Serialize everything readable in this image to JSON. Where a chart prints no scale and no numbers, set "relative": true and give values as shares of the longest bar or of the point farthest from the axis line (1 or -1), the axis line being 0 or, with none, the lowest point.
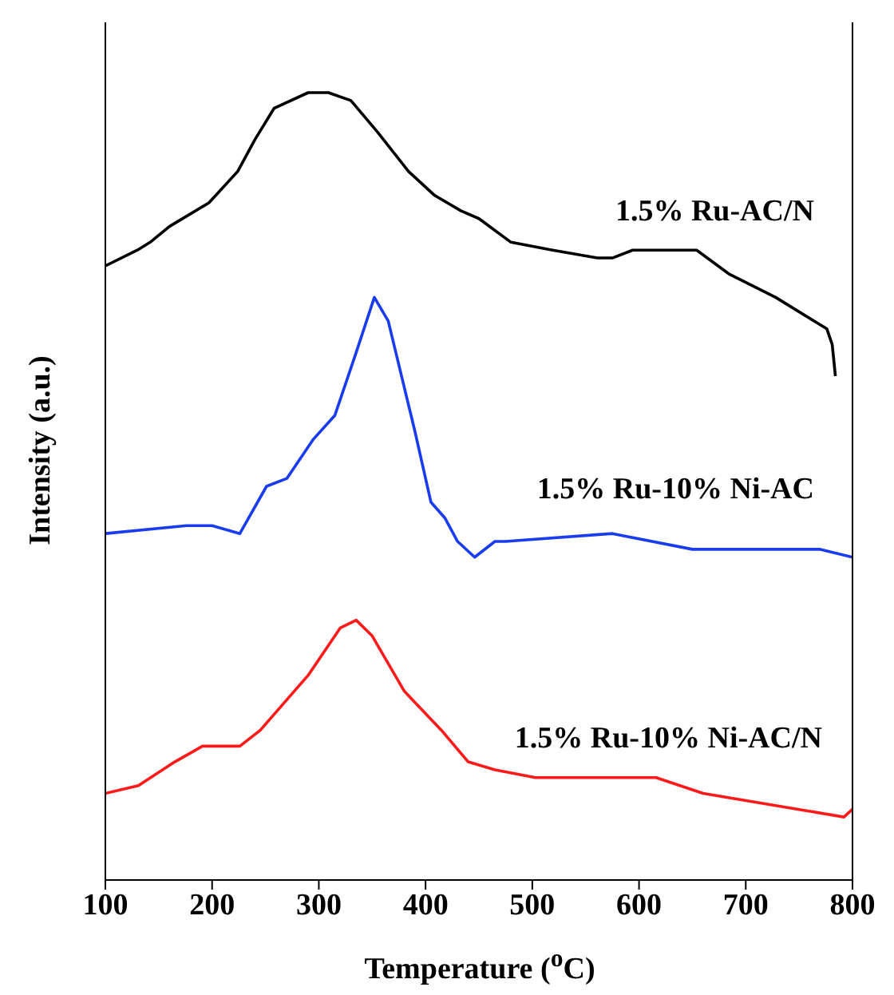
{
  "chart_data": {
    "type": "line",
    "xlabel": "Temperature ($^{o}$C)",
    "ylabel": "Intensity (a.u.)",
    "relative": true,
    "xlim": [
      100,
      800
    ],
    "xticks": [
      100,
      200,
      300,
      400,
      500,
      600,
      700,
      800
    ],
    "legend": false,
    "marker": "none",
    "line_style": "solid",
    "series": [
      {
        "name": "1.5% Ru-AC/N",
        "color": "#000000",
        "x": [
          100,
          130,
          142,
          160,
          197,
          224,
          240,
          258,
          290,
          309,
          330,
          355,
          384,
          408,
          433,
          450,
          480,
          519,
          561,
          575,
          594,
          654,
          684,
          728,
          776,
          781,
          784
        ],
        "values": [
          0.78,
          0.8,
          0.81,
          0.83,
          0.86,
          0.9,
          0.94,
          0.98,
          1.0,
          1.0,
          0.99,
          0.95,
          0.9,
          0.87,
          0.85,
          0.84,
          0.81,
          0.8,
          0.79,
          0.79,
          0.8,
          0.8,
          0.77,
          0.74,
          0.7,
          0.68,
          0.64
        ]
      },
      {
        "name": "1.5% Ru-10% Ni-AC",
        "color": "#1a3cf0",
        "x": [
          100,
          176,
          200,
          226,
          251,
          270,
          295,
          315,
          335,
          352,
          365,
          390,
          405,
          418,
          430,
          446,
          465,
          475,
          575,
          650,
          752,
          770,
          800
        ],
        "values": [
          0.44,
          0.45,
          0.45,
          0.44,
          0.5,
          0.51,
          0.56,
          0.59,
          0.67,
          0.74,
          0.71,
          0.57,
          0.48,
          0.46,
          0.43,
          0.41,
          0.43,
          0.43,
          0.44,
          0.42,
          0.42,
          0.42,
          0.41
        ]
      },
      {
        "name": "1.5% Ru-10% Ni-AC/N",
        "color": "#ff1a1a",
        "x": [
          100,
          131,
          165,
          191,
          226,
          245,
          290,
          320,
          335,
          350,
          380,
          415,
          440,
          465,
          503,
          616,
          660,
          792,
          800
        ],
        "values": [
          0.11,
          0.12,
          0.15,
          0.17,
          0.17,
          0.19,
          0.26,
          0.32,
          0.33,
          0.31,
          0.24,
          0.19,
          0.15,
          0.14,
          0.13,
          0.13,
          0.11,
          0.08,
          0.09
        ]
      }
    ]
  }
}
